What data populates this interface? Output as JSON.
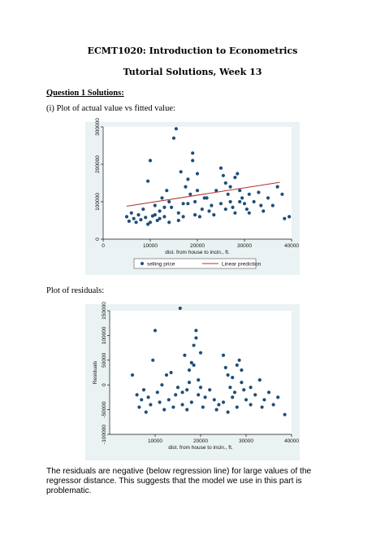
{
  "document": {
    "title": "ECMT1020: Introduction to Econometrics",
    "subtitle": "Tutorial Solutions, Week 13",
    "question_heading": "Question 1 Solutions:",
    "plot1_caption": "(i) Plot of actual value vs fitted value:",
    "plot2_caption": "Plot of residuals:",
    "conclusion": "The residuals are negative (below regression line) for large values of the regressor distance. This suggests that the model we use in this part is problematic."
  },
  "colors": {
    "points": "#1f4e79",
    "fit_line": "#b03030",
    "panel_bg": "#eaf2f3"
  },
  "chart_data": [
    {
      "type": "scatter",
      "xlabel": "dist. from house to incin., ft.",
      "ylabel": "",
      "xlim": [
        0,
        40000
      ],
      "ylim": [
        0,
        300000
      ],
      "x_ticks": [
        "0",
        "10000",
        "20000",
        "30000",
        "40000"
      ],
      "y_ticks": [
        "0",
        "100000",
        "200000",
        "300000"
      ],
      "legend": [
        "selling price",
        "Linear prediction"
      ],
      "legend_position": "bottom",
      "series": [
        {
          "name": "selling price",
          "marker": "dot",
          "points": [
            [
              5000,
              60000
            ],
            [
              5500,
              48000
            ],
            [
              6000,
              70000
            ],
            [
              6500,
              55000
            ],
            [
              7000,
              45000
            ],
            [
              7500,
              65000
            ],
            [
              8000,
              52000
            ],
            [
              8500,
              80000
            ],
            [
              9000,
              58000
            ],
            [
              9500,
              40000
            ],
            [
              9500,
              155000
            ],
            [
              10000,
              210000
            ],
            [
              10500,
              62000
            ],
            [
              11000,
              90000
            ],
            [
              11500,
              50000
            ],
            [
              12000,
              75000
            ],
            [
              12500,
              110000
            ],
            [
              13000,
              60000
            ],
            [
              13500,
              130000
            ],
            [
              14000,
              45000
            ],
            [
              14500,
              85000
            ],
            [
              15000,
              270000
            ],
            [
              15500,
              295000
            ],
            [
              16000,
              70000
            ],
            [
              16500,
              180000
            ],
            [
              17000,
              95000
            ],
            [
              17500,
              140000
            ],
            [
              18000,
              160000
            ],
            [
              18500,
              120000
            ],
            [
              19000,
              230000
            ],
            [
              19000,
              210000
            ],
            [
              19500,
              100000
            ],
            [
              20000,
              175000
            ],
            [
              20500,
              60000
            ],
            [
              21000,
              80000
            ],
            [
              17000,
              60000
            ],
            [
              16000,
              50000
            ],
            [
              18000,
              95000
            ],
            [
              19500,
              65000
            ],
            [
              20000,
              130000
            ],
            [
              21500,
              110000
            ],
            [
              22500,
              75000
            ],
            [
              23000,
              90000
            ],
            [
              24000,
              130000
            ],
            [
              25000,
              190000
            ],
            [
              25500,
              170000
            ],
            [
              26000,
              150000
            ],
            [
              26500,
              120000
            ],
            [
              27000,
              100000
            ],
            [
              27500,
              85000
            ],
            [
              28000,
              165000
            ],
            [
              28500,
              175000
            ],
            [
              29000,
              130000
            ],
            [
              29500,
              110000
            ],
            [
              30000,
              95000
            ],
            [
              30500,
              80000
            ],
            [
              31000,
              70000
            ],
            [
              32000,
              100000
            ],
            [
              33000,
              125000
            ],
            [
              34000,
              75000
            ],
            [
              35000,
              110000
            ],
            [
              36000,
              90000
            ],
            [
              37000,
              140000
            ],
            [
              38000,
              120000
            ],
            [
              38500,
              55000
            ],
            [
              39500,
              60000
            ],
            [
              25000,
              95000
            ],
            [
              26000,
              80000
            ],
            [
              27000,
              140000
            ],
            [
              28000,
              70000
            ],
            [
              12000,
              55000
            ],
            [
              13000,
              85000
            ],
            [
              14000,
              100000
            ],
            [
              11000,
              65000
            ],
            [
              10000,
              45000
            ],
            [
              22000,
              110000
            ],
            [
              23500,
              65000
            ],
            [
              29000,
              100000
            ],
            [
              31000,
              120000
            ],
            [
              33500,
              90000
            ]
          ]
        },
        {
          "name": "Linear prediction",
          "type": "line",
          "points": [
            [
              5000,
              88000
            ],
            [
              37500,
              152000
            ]
          ]
        }
      ]
    },
    {
      "type": "scatter",
      "xlabel": "dist. from house to incin., ft.",
      "ylabel": "Residuals",
      "xlim": [
        0,
        40000
      ],
      "ylim": [
        -100000,
        150000
      ],
      "x_ticks": [
        "10000",
        "20000",
        "30000",
        "40000"
      ],
      "y_ticks": [
        "-100000",
        "-50000",
        "0",
        "50000",
        "100000",
        "150000"
      ],
      "series": [
        {
          "name": "",
          "marker": "dot",
          "points": [
            [
              5000,
              20000
            ],
            [
              6000,
              -20000
            ],
            [
              6500,
              -45000
            ],
            [
              7000,
              -30000
            ],
            [
              7500,
              -10000
            ],
            [
              8000,
              -55000
            ],
            [
              8500,
              -25000
            ],
            [
              9000,
              -40000
            ],
            [
              9500,
              50000
            ],
            [
              10000,
              110000
            ],
            [
              10500,
              -15000
            ],
            [
              11000,
              -35000
            ],
            [
              11500,
              0
            ],
            [
              12000,
              -50000
            ],
            [
              12500,
              20000
            ],
            [
              13000,
              -30000
            ],
            [
              13500,
              25000
            ],
            [
              14000,
              -45000
            ],
            [
              14500,
              -20000
            ],
            [
              15000,
              -5000
            ],
            [
              15500,
              155000
            ],
            [
              16000,
              -40000
            ],
            [
              16500,
              60000
            ],
            [
              17000,
              -10000
            ],
            [
              17500,
              30000
            ],
            [
              18000,
              45000
            ],
            [
              18500,
              40000
            ],
            [
              19000,
              110000
            ],
            [
              19000,
              95000
            ],
            [
              19500,
              -20000
            ],
            [
              20000,
              65000
            ],
            [
              20500,
              -45000
            ],
            [
              21000,
              -25000
            ],
            [
              17000,
              -50000
            ],
            [
              18000,
              -35000
            ],
            [
              19500,
              10000
            ],
            [
              20000,
              -5000
            ],
            [
              16000,
              -15000
            ],
            [
              17500,
              5000
            ],
            [
              18500,
              80000
            ],
            [
              22000,
              -10000
            ],
            [
              23000,
              -30000
            ],
            [
              24000,
              -40000
            ],
            [
              25000,
              60000
            ],
            [
              25500,
              35000
            ],
            [
              26000,
              20000
            ],
            [
              26500,
              -5000
            ],
            [
              27000,
              -25000
            ],
            [
              27500,
              -15000
            ],
            [
              28000,
              40000
            ],
            [
              28500,
              50000
            ],
            [
              29000,
              5000
            ],
            [
              29500,
              -10000
            ],
            [
              30000,
              -30000
            ],
            [
              31000,
              -40000
            ],
            [
              32000,
              -20000
            ],
            [
              33000,
              10000
            ],
            [
              34000,
              -30000
            ],
            [
              35000,
              -15000
            ],
            [
              36000,
              -40000
            ],
            [
              37000,
              -25000
            ],
            [
              38500,
              -60000
            ],
            [
              25000,
              -35000
            ],
            [
              26000,
              -55000
            ],
            [
              27000,
              15000
            ],
            [
              28000,
              -45000
            ],
            [
              23500,
              -50000
            ],
            [
              29000,
              30000
            ],
            [
              31000,
              -5000
            ],
            [
              33500,
              -45000
            ]
          ]
        }
      ]
    }
  ]
}
